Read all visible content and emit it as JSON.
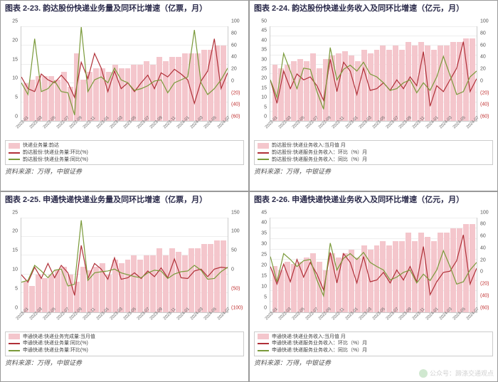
{
  "colors": {
    "bar": "#f4c6cc",
    "line1": "#b03038",
    "line2": "#7a9a3a",
    "grid": "#eeeeee",
    "neg_axis": "#c03030"
  },
  "x_categories": [
    "2022-01",
    "2022-03",
    "2022-05",
    "2022-07",
    "2022-09",
    "2022-11",
    "2023-01",
    "2023-03",
    "2023-05",
    "2023-07",
    "2023-09",
    "2023-11",
    "2024-01",
    "2024-03",
    "2024-05",
    "2024-07"
  ],
  "source_text": "资料来源：万得，中银证券",
  "watermark": "公众号：蹄涤交通观点",
  "panels": [
    {
      "title": "图表 2-23. 韵达股份快递业务量及同环比增速（亿票，月）",
      "y_left": {
        "min": 0,
        "max": 25,
        "step": 5
      },
      "y_right": {
        "min": -60,
        "max": 100,
        "step": 20,
        "neg": true
      },
      "bars": [
        10,
        11,
        12,
        12,
        12,
        11,
        13,
        9,
        18,
        11,
        13,
        14,
        14,
        13,
        15,
        14,
        14,
        15,
        15,
        16,
        15,
        17,
        16,
        17,
        17,
        18,
        18,
        18,
        19,
        19,
        20,
        20
      ],
      "line1": [
        15,
        -5,
        -10,
        20,
        10,
        5,
        18,
        5,
        -20,
        40,
        12,
        55,
        30,
        -10,
        25,
        -5,
        5,
        -10,
        5,
        18,
        -5,
        22,
        15,
        28,
        20,
        10,
        -30,
        8,
        25,
        80,
        -5,
        22
      ],
      "line2": [
        5,
        -15,
        80,
        -10,
        -5,
        8,
        -10,
        -12,
        -50,
        100,
        -10,
        10,
        15,
        5,
        30,
        10,
        5,
        -8,
        -5,
        0,
        8,
        10,
        -12,
        5,
        10,
        15,
        95,
        5,
        -15,
        -5,
        10,
        30
      ],
      "legend": [
        {
          "type": "bar",
          "label": "快递业务量:韵达"
        },
        {
          "type": "line",
          "color": "#b03038",
          "label": "韵达股份:快递业务量:环比(%)"
        },
        {
          "type": "line",
          "color": "#7a9a3a",
          "label": "韵达股份:快递业务量:同比(%)"
        }
      ]
    },
    {
      "title": "图表 2-24. 韵达股份快递业务收入及同环比增速（亿元，月）",
      "y_left": {
        "min": 0,
        "max": 50,
        "step": 5
      },
      "y_right": {
        "min": -60,
        "max": 100,
        "step": 20,
        "neg": true
      },
      "bars": [
        30,
        28,
        30,
        32,
        33,
        32,
        36,
        28,
        33,
        35,
        36,
        37,
        35,
        32,
        38,
        36,
        38,
        40,
        38,
        40,
        38,
        42,
        40,
        42,
        40,
        38,
        40,
        40,
        42,
        42,
        44,
        44
      ],
      "line1": [
        10,
        -30,
        25,
        -5,
        20,
        10,
        15,
        0,
        -25,
        45,
        -10,
        40,
        25,
        -15,
        30,
        -8,
        -5,
        5,
        -8,
        10,
        -5,
        15,
        0,
        58,
        -35,
        0,
        -10,
        10,
        30,
        75,
        -10,
        12
      ],
      "line2": [
        10,
        -20,
        55,
        25,
        -5,
        30,
        28,
        -10,
        -40,
        65,
        10,
        28,
        35,
        25,
        40,
        20,
        15,
        5,
        -8,
        -5,
        5,
        10,
        -12,
        5,
        -8,
        15,
        50,
        18,
        -15,
        -10,
        15,
        25
      ],
      "legend": [
        {
          "type": "bar",
          "label": "韵达股份:快递业务收入:当月值 月"
        },
        {
          "type": "line",
          "color": "#b03038",
          "label": "韵达股份:快递服务业务收入：环比（%）月"
        },
        {
          "type": "line",
          "color": "#7a9a3a",
          "label": "韵达股份:快递服务业务收入：同比（%）月"
        }
      ]
    },
    {
      "title": "图表 2-25. 申通快递快递业务量及同环比增速（亿票，月）",
      "y_left": {
        "min": 0,
        "max": 25,
        "step": 5
      },
      "y_right": {
        "min": -100,
        "max": 150,
        "step": 50,
        "neg": true
      },
      "bars": [
        8,
        7,
        10,
        9,
        10,
        11,
        12,
        10,
        8,
        12,
        11,
        12,
        13,
        10,
        14,
        13,
        14,
        15,
        14,
        15,
        15,
        17,
        15,
        17,
        16,
        15,
        17,
        17,
        18,
        18,
        19,
        19
      ],
      "line1": [
        0,
        -20,
        20,
        -10,
        30,
        -8,
        25,
        5,
        -55,
        78,
        -10,
        30,
        15,
        -12,
        45,
        -12,
        -8,
        5,
        -10,
        10,
        -5,
        18,
        -8,
        42,
        -8,
        -10,
        10,
        15,
        -5,
        15,
        20,
        18
      ],
      "line2": [
        -20,
        -15,
        25,
        10,
        -8,
        12,
        15,
        -30,
        -25,
        145,
        -15,
        5,
        8,
        10,
        15,
        5,
        0,
        -5,
        -8,
        5,
        12,
        10,
        -10,
        2,
        8,
        10,
        25,
        12,
        -12,
        -10,
        8,
        20
      ],
      "legend": [
        {
          "type": "bar",
          "label": "申通快递:快递业务完成量:当月值"
        },
        {
          "type": "line",
          "color": "#b03038",
          "label": "申通快递:快递业务量:同比(%)"
        },
        {
          "type": "line",
          "color": "#7a9a3a",
          "label": "申通快递:快递业务量:环比(%)"
        }
      ]
    },
    {
      "title": "图表 2-26. 申通快递快递业务收入及同环比增速（亿元，月）",
      "y_left": {
        "min": 0,
        "max": 45,
        "step": 5
      },
      "y_right": {
        "min": -60,
        "max": 100,
        "step": 20,
        "neg": true
      },
      "bars": [
        22,
        20,
        24,
        23,
        24,
        26,
        28,
        24,
        20,
        28,
        26,
        28,
        30,
        26,
        32,
        30,
        32,
        34,
        32,
        34,
        34,
        38,
        34,
        38,
        36,
        34,
        38,
        38,
        40,
        40,
        42,
        42
      ],
      "line1": [
        18,
        -12,
        22,
        -8,
        30,
        0,
        25,
        5,
        -22,
        42,
        -10,
        40,
        25,
        -10,
        35,
        -8,
        -5,
        8,
        -10,
        12,
        -5,
        18,
        -8,
        52,
        -30,
        -8,
        8,
        10,
        28,
        72,
        -12,
        15
      ],
      "line2": [
        35,
        -8,
        40,
        30,
        18,
        28,
        30,
        -5,
        -32,
        58,
        12,
        32,
        40,
        30,
        42,
        25,
        18,
        12,
        -5,
        0,
        8,
        12,
        -10,
        5,
        -6,
        12,
        45,
        18,
        -12,
        -8,
        12,
        25
      ],
      "legend": [
        {
          "type": "bar",
          "label": "申通快递:快递业务收入:当月值 月"
        },
        {
          "type": "line",
          "color": "#b03038",
          "label": "申通快递:快递服务业务收入：环比（%）月"
        },
        {
          "type": "line",
          "color": "#7a9a3a",
          "label": "申通快递:快递服务业务收入：同比（%）月"
        }
      ]
    }
  ]
}
